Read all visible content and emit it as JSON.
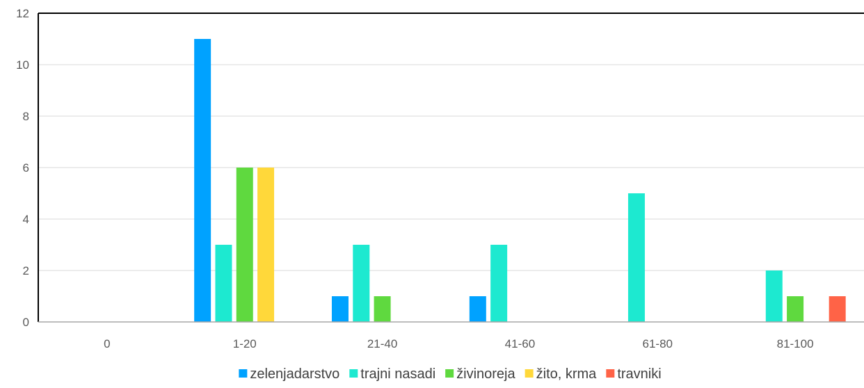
{
  "chart_data": {
    "type": "bar",
    "title": "",
    "xlabel": "",
    "ylabel": "",
    "categories": [
      "0",
      "1-20",
      "21-40",
      "41-60",
      "61-80",
      "81-100"
    ],
    "ylim": [
      0,
      12
    ],
    "yticks": [
      0,
      2,
      4,
      6,
      8,
      10,
      12
    ],
    "grid": true,
    "legend_position": "bottom",
    "series": [
      {
        "name": "zelenjadarstvo",
        "color": "#00a2ff",
        "values": [
          0,
          11,
          1,
          1,
          0,
          0
        ]
      },
      {
        "name": "trajni nasadi",
        "color": "#1de9d0",
        "values": [
          0,
          3,
          3,
          3,
          5,
          2
        ]
      },
      {
        "name": "živinoreja",
        "color": "#5fd93f",
        "values": [
          0,
          6,
          1,
          0,
          0,
          1
        ]
      },
      {
        "name": "žito, krma",
        "color": "#ffd83a",
        "values": [
          0,
          6,
          0,
          0,
          0,
          0
        ]
      },
      {
        "name": "travniki",
        "color": "#ff6347",
        "values": [
          0,
          0,
          0,
          0,
          0,
          1
        ]
      }
    ]
  }
}
